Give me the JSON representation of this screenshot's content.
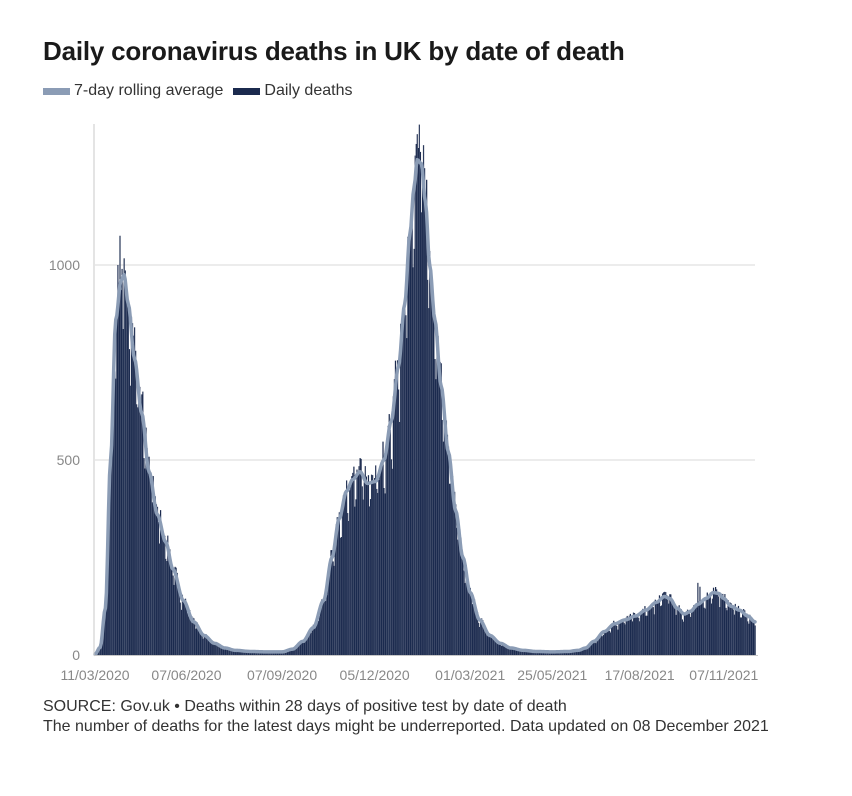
{
  "colors": {
    "rolling": "#8b9cb5",
    "daily": "#1b2a4e",
    "grid": "#e6e6e6",
    "axis": "#c8c8c8"
  },
  "header": {
    "title": "Daily coronavirus deaths in UK by date of death"
  },
  "legend": [
    {
      "label": "7-day rolling average",
      "color": "#8b9cb5"
    },
    {
      "label": "Daily deaths",
      "color": "#1b2a4e"
    }
  ],
  "footer": {
    "source": "SOURCE: Gov.uk • Deaths within 28 days of positive test by date of death",
    "note": "The number of deaths for the latest days might be underreported. Data updated on 08 December 2021"
  },
  "chart_data": {
    "type": "bar",
    "title": "Daily coronavirus deaths in UK by date of death",
    "xlabel": "",
    "ylabel": "",
    "ylim": [
      0,
      1360
    ],
    "yticks": [
      0,
      500,
      1000
    ],
    "grid": true,
    "legend_position": "top-left",
    "date_start": "2020-03-11",
    "num_days": 636,
    "xtick_days": [
      0,
      88,
      180,
      269,
      361,
      440,
      524,
      605
    ],
    "xtick_labels": [
      "11/03/2020",
      "07/06/2020",
      "07/09/2020",
      "05/12/2020",
      "01/03/2021",
      "25/05/2021",
      "17/08/2021",
      "07/11/2021"
    ],
    "rolling_average_keypoints": [
      [
        0,
        2
      ],
      [
        5,
        20
      ],
      [
        10,
        120
      ],
      [
        15,
        500
      ],
      [
        20,
        860
      ],
      [
        25,
        960
      ],
      [
        28,
        975
      ],
      [
        32,
        900
      ],
      [
        38,
        760
      ],
      [
        45,
        620
      ],
      [
        52,
        470
      ],
      [
        60,
        360
      ],
      [
        68,
        290
      ],
      [
        75,
        220
      ],
      [
        85,
        140
      ],
      [
        95,
        85
      ],
      [
        105,
        50
      ],
      [
        115,
        30
      ],
      [
        125,
        18
      ],
      [
        135,
        12
      ],
      [
        150,
        9
      ],
      [
        165,
        8
      ],
      [
        180,
        8
      ],
      [
        190,
        15
      ],
      [
        200,
        35
      ],
      [
        210,
        70
      ],
      [
        220,
        140
      ],
      [
        228,
        250
      ],
      [
        235,
        350
      ],
      [
        242,
        420
      ],
      [
        248,
        450
      ],
      [
        255,
        470
      ],
      [
        262,
        440
      ],
      [
        270,
        445
      ],
      [
        278,
        500
      ],
      [
        285,
        600
      ],
      [
        292,
        740
      ],
      [
        298,
        900
      ],
      [
        303,
        1080
      ],
      [
        307,
        1200
      ],
      [
        310,
        1270
      ],
      [
        314,
        1260
      ],
      [
        318,
        1160
      ],
      [
        322,
        1000
      ],
      [
        327,
        860
      ],
      [
        333,
        690
      ],
      [
        340,
        520
      ],
      [
        347,
        370
      ],
      [
        354,
        250
      ],
      [
        361,
        160
      ],
      [
        370,
        90
      ],
      [
        380,
        50
      ],
      [
        390,
        30
      ],
      [
        400,
        18
      ],
      [
        412,
        12
      ],
      [
        425,
        9
      ],
      [
        440,
        8
      ],
      [
        455,
        9
      ],
      [
        465,
        12
      ],
      [
        472,
        18
      ],
      [
        480,
        35
      ],
      [
        490,
        60
      ],
      [
        500,
        80
      ],
      [
        510,
        90
      ],
      [
        520,
        100
      ],
      [
        530,
        115
      ],
      [
        540,
        135
      ],
      [
        548,
        150
      ],
      [
        553,
        145
      ],
      [
        560,
        120
      ],
      [
        567,
        105
      ],
      [
        573,
        112
      ],
      [
        580,
        130
      ],
      [
        588,
        145
      ],
      [
        595,
        160
      ],
      [
        600,
        158
      ],
      [
        605,
        145
      ],
      [
        612,
        125
      ],
      [
        620,
        115
      ],
      [
        628,
        100
      ],
      [
        635,
        85
      ]
    ],
    "daily_noise": "weekly reporting pattern with lower values on weekends; peaks of about 1075 in April 2020 and about 1360 in January 2021"
  }
}
